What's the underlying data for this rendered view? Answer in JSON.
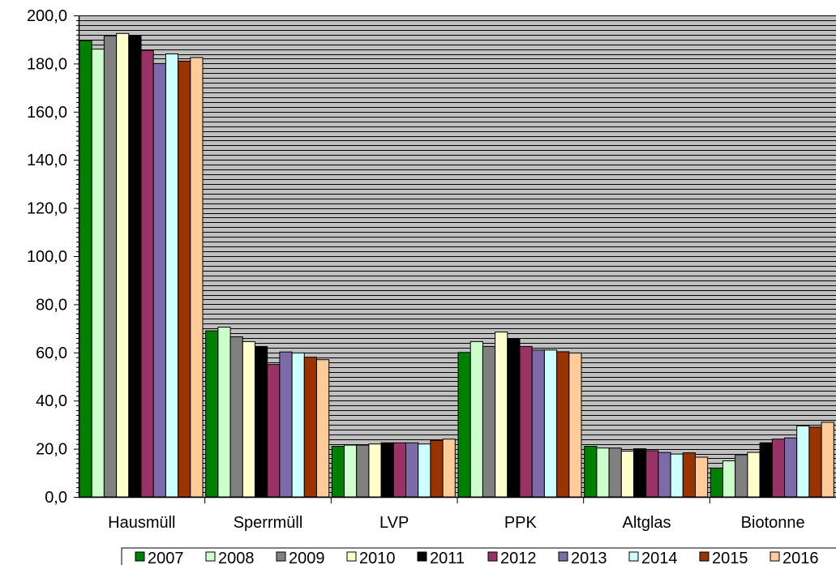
{
  "chart_data": {
    "type": "bar",
    "title": "",
    "xlabel": "",
    "ylabel": "",
    "ylim": [
      0,
      200
    ],
    "y_ticks": [
      "0,0",
      "20,0",
      "40,0",
      "60,0",
      "80,0",
      "100,0",
      "120,0",
      "140,0",
      "160,0",
      "180,0",
      "200,0"
    ],
    "grid": "horizontal lines every 2 units",
    "plot_background": "#c0c0c0",
    "legend_position": "bottom",
    "categories": [
      "Hausmüll",
      "Sperrmüll",
      "LVP",
      "PPK",
      "Altglas",
      "Biotonne"
    ],
    "series": [
      {
        "name": "2007",
        "color": "#008000",
        "values": [
          189.5,
          69,
          21,
          60,
          21,
          12
        ]
      },
      {
        "name": "2008",
        "color": "#ccffcc",
        "values": [
          186,
          70.5,
          21.5,
          64.5,
          20.3,
          15
        ]
      },
      {
        "name": "2009",
        "color": "#808080",
        "values": [
          191.5,
          66.5,
          21.5,
          62.5,
          20.3,
          17.5
        ]
      },
      {
        "name": "2010",
        "color": "#ffffcc",
        "values": [
          192.5,
          64.5,
          22,
          68.5,
          19,
          18.5
        ]
      },
      {
        "name": "2011",
        "color": "#000000",
        "values": [
          191.5,
          62.5,
          22.5,
          65.5,
          20,
          22.5
        ]
      },
      {
        "name": "2012",
        "color": "#993366",
        "values": [
          185.5,
          55,
          22.5,
          62.5,
          19.2,
          24
        ]
      },
      {
        "name": "2013",
        "color": "#7d6aa8",
        "values": [
          180,
          60.2,
          22.5,
          61,
          18.5,
          24.5
        ]
      },
      {
        "name": "2014",
        "color": "#ccffff",
        "values": [
          184,
          59.8,
          22,
          61,
          17.8,
          29.5
        ]
      },
      {
        "name": "2015",
        "color": "#993300",
        "values": [
          181,
          58,
          23.5,
          60.3,
          18.3,
          29
        ]
      },
      {
        "name": "2016",
        "color": "#ffcc99",
        "values": [
          182.5,
          57,
          24,
          59.8,
          16.5,
          31
        ]
      }
    ]
  }
}
